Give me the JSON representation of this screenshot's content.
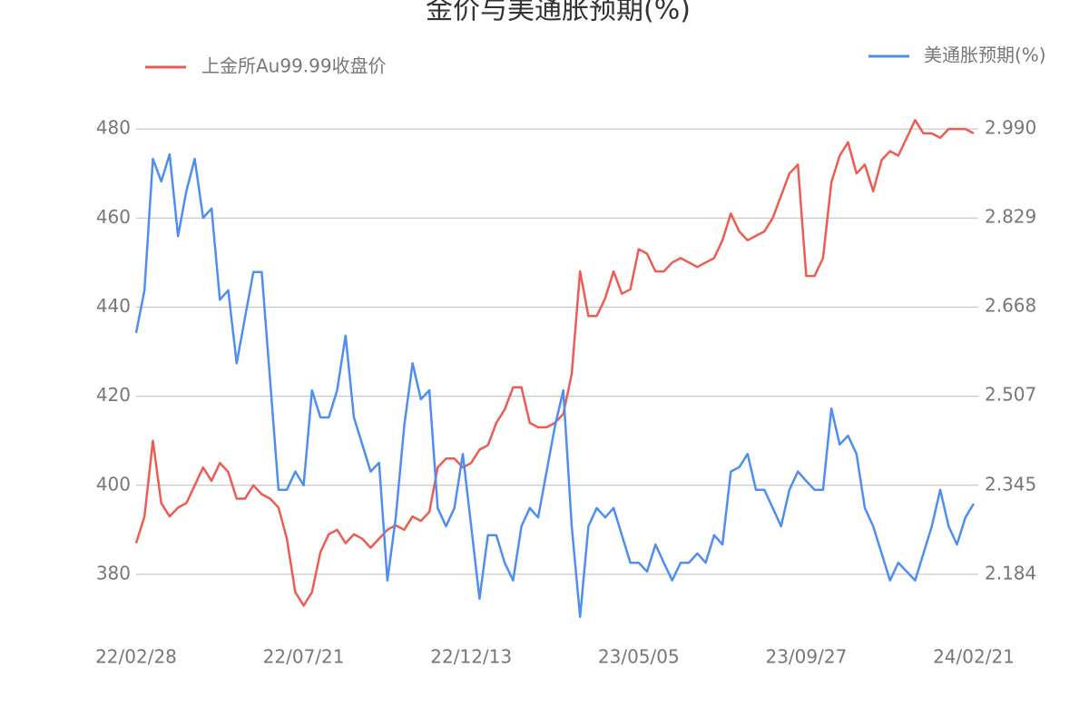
{
  "chart_data": {
    "type": "line",
    "title": "金价与美通胀预期(%)",
    "categories": [
      "22/02/28",
      null,
      null,
      null,
      null,
      null,
      null,
      null,
      null,
      null,
      null,
      null,
      null,
      null,
      null,
      null,
      null,
      null,
      null,
      null,
      "22/07/21",
      null,
      null,
      null,
      null,
      null,
      null,
      null,
      null,
      null,
      null,
      null,
      null,
      null,
      null,
      null,
      null,
      null,
      null,
      null,
      "22/12/13",
      null,
      null,
      null,
      null,
      null,
      null,
      null,
      null,
      null,
      null,
      null,
      null,
      null,
      null,
      null,
      null,
      null,
      null,
      null,
      "23/05/05",
      null,
      null,
      null,
      null,
      null,
      null,
      null,
      null,
      null,
      null,
      null,
      null,
      null,
      null,
      null,
      null,
      null,
      null,
      null,
      "23/09/27",
      null,
      null,
      null,
      null,
      null,
      null,
      null,
      null,
      null,
      null,
      null,
      null,
      null,
      null,
      null,
      null,
      null,
      null,
      null,
      "24/02/21"
    ],
    "series": [
      {
        "name": "上金所Au99.99收盘价",
        "color": "#ee5b52",
        "axis": "y",
        "values": [
          387,
          393,
          410,
          396,
          393,
          395,
          396,
          400,
          404,
          401,
          405,
          403,
          397,
          397,
          400,
          398,
          397,
          395,
          388,
          376,
          373,
          376,
          385,
          389,
          390,
          387,
          389,
          388,
          386,
          388,
          390,
          391,
          390,
          393,
          392,
          394,
          404,
          406,
          406,
          404,
          405,
          408,
          409,
          414,
          417,
          422,
          422,
          414,
          413,
          413,
          414,
          416,
          425,
          448,
          438,
          438,
          442,
          448,
          443,
          444,
          453,
          452,
          448,
          448,
          450,
          451,
          450,
          449,
          450,
          451,
          455,
          461,
          457,
          455,
          456,
          457,
          460,
          465,
          470,
          472,
          447,
          447,
          451,
          468,
          474,
          477,
          470,
          472,
          466,
          473,
          475,
          474,
          478,
          482,
          479,
          479,
          478,
          480,
          480,
          480,
          479
        ]
      },
      {
        "name": "美通胀预期(%)",
        "color": "#4e8ef0",
        "axis": "y2",
        "values": [
          2.621,
          2.698,
          2.936,
          2.895,
          2.944,
          2.796,
          2.878,
          2.936,
          2.829,
          2.846,
          2.681,
          2.698,
          2.566,
          2.649,
          2.731,
          2.731,
          2.534,
          2.337,
          2.337,
          2.37,
          2.345,
          2.517,
          2.468,
          2.468,
          2.517,
          2.616,
          2.468,
          2.419,
          2.37,
          2.386,
          2.173,
          2.287,
          2.452,
          2.566,
          2.501,
          2.517,
          2.304,
          2.271,
          2.304,
          2.402,
          2.271,
          2.14,
          2.255,
          2.255,
          2.205,
          2.173,
          2.271,
          2.304,
          2.287,
          2.37,
          2.452,
          2.517,
          2.271,
          2.107,
          2.271,
          2.304,
          2.287,
          2.304,
          2.255,
          2.205,
          2.205,
          2.189,
          2.238,
          2.205,
          2.173,
          2.205,
          2.205,
          2.222,
          2.205,
          2.255,
          2.238,
          2.37,
          2.378,
          2.402,
          2.337,
          2.337,
          2.304,
          2.271,
          2.337,
          2.37,
          2.353,
          2.337,
          2.337,
          2.484,
          2.419,
          2.435,
          2.402,
          2.304,
          2.271,
          2.222,
          2.173,
          2.205,
          2.189,
          2.173,
          2.222,
          2.271,
          2.337,
          2.271,
          2.238,
          2.287,
          2.312
        ]
      }
    ],
    "ylim": [
      370,
      490
    ],
    "yticks": [
      380,
      400,
      420,
      440,
      460,
      480
    ],
    "y2lim": [
      2.1034,
      3.0706
    ],
    "y2ticks": [
      2.184,
      2.345,
      2.507,
      2.668,
      2.829,
      {
        "value": 2.99,
        "label": "2.990"
      }
    ],
    "grid": true
  }
}
